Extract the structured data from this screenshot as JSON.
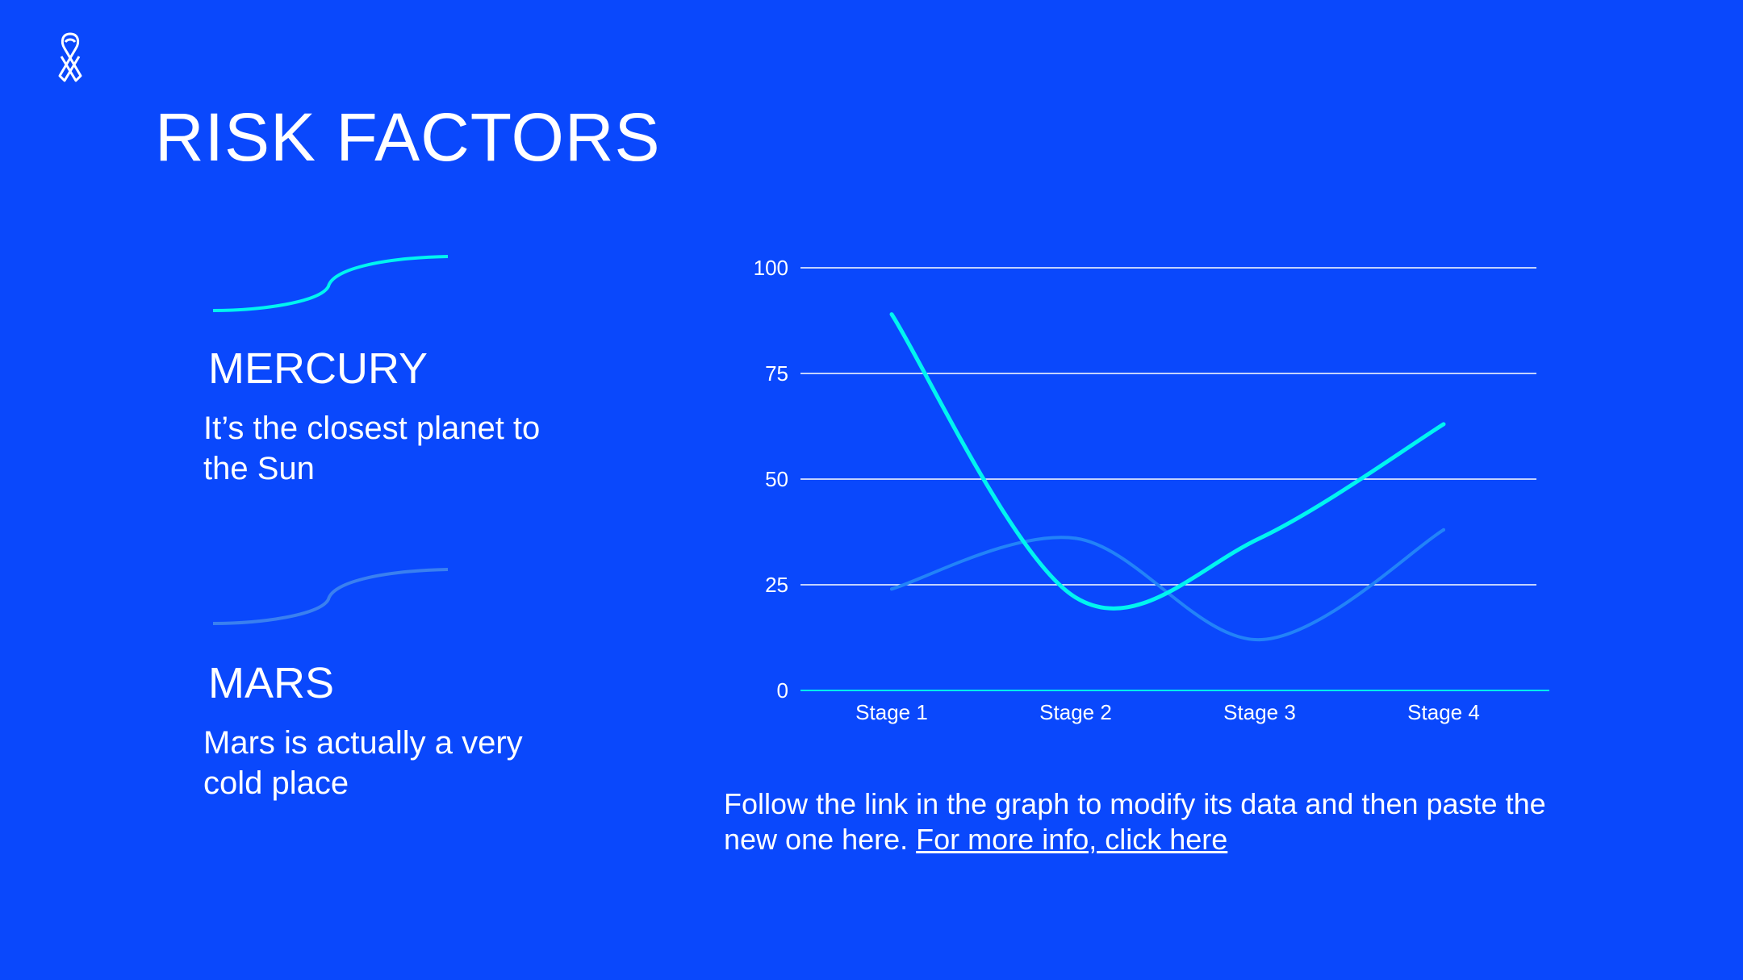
{
  "colors": {
    "background": "#0a48fc",
    "text": "#ffffff",
    "series_primary": "#00f5f0",
    "series_secondary": "#2283f8",
    "swash_secondary": "#3a80f0"
  },
  "logo": {
    "icon": "awareness-ribbon-icon"
  },
  "title": "RISK FACTORS",
  "items": [
    {
      "name": "MERCURY",
      "description": "It’s the closest planet to the Sun",
      "icon": "swash-line-icon",
      "color": "#00f5f0"
    },
    {
      "name": "MARS",
      "description": "Mars is actually a very cold place",
      "icon": "swash-line-icon",
      "color": "#3a80f0"
    }
  ],
  "chart_data": {
    "type": "line",
    "categories": [
      "Stage 1",
      "Stage 2",
      "Stage 3",
      "Stage 4"
    ],
    "ylim": [
      0,
      100
    ],
    "yticks": [
      "0",
      "25",
      "50",
      "75",
      "100"
    ],
    "grid": true,
    "smooth": true,
    "series": [
      {
        "values": [
          89,
          22,
          36,
          63
        ],
        "color": "#00f5f0"
      },
      {
        "values": [
          24,
          36,
          12,
          38
        ],
        "color": "#2283f8"
      }
    ]
  },
  "note": {
    "text": "Follow the link in the graph to modify its data and then paste the new one here. ",
    "link_text": "For more info, click here"
  }
}
